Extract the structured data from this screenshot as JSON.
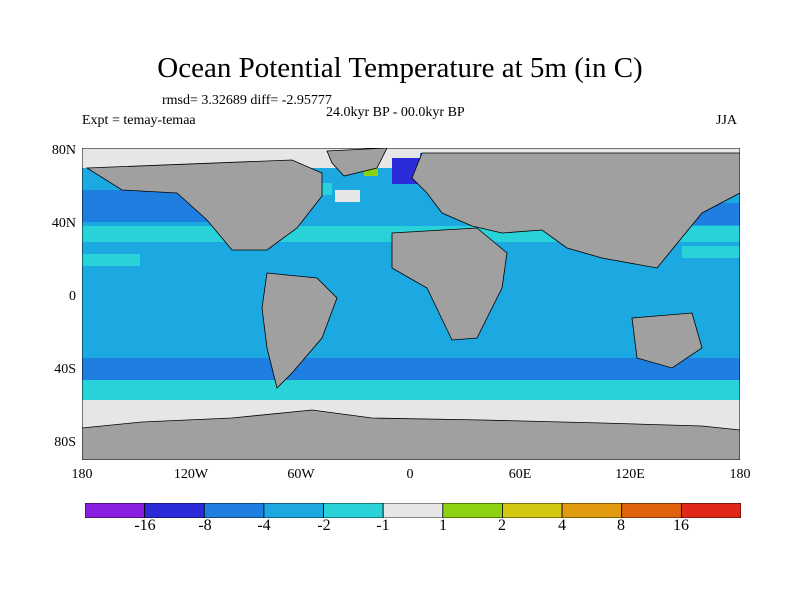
{
  "title": "Ocean Potential Temperature at 5m (in C)",
  "stats": "rmsd= 3.32689 diff= -2.95777",
  "period": "24.0kyr BP - 00.0kyr BP",
  "experiment": "Expt = temay-temaa",
  "season": "JJA",
  "map": {
    "projection": "cylindrical-equidistant",
    "lon_range": [
      -180,
      180
    ],
    "lat_range": [
      -90,
      90
    ],
    "land_color": "#a0a0a0",
    "y_ticks": [
      {
        "lat": 80,
        "label": "80N"
      },
      {
        "lat": 40,
        "label": "40N"
      },
      {
        "lat": 0,
        "label": "0"
      },
      {
        "lat": -40,
        "label": "40S"
      },
      {
        "lat": -80,
        "label": "80S"
      }
    ],
    "x_ticks": [
      {
        "lon": -180,
        "label": "180"
      },
      {
        "lon": -120,
        "label": "120W"
      },
      {
        "lon": -60,
        "label": "60W"
      },
      {
        "lon": 0,
        "label": "0"
      },
      {
        "lon": 60,
        "label": "60E"
      },
      {
        "lon": 120,
        "label": "120E"
      },
      {
        "lon": 180,
        "label": "180"
      }
    ]
  },
  "colorbar": {
    "colors": [
      "#8a1ee0",
      "#2b2bd9",
      "#1f7fe0",
      "#1ca8e0",
      "#28d2d8",
      "#e6e6e6",
      "#8cd213",
      "#d2c80f",
      "#e09a10",
      "#e0620f",
      "#e0281a"
    ],
    "labels": [
      "-16",
      "-8",
      "-4",
      "-2",
      "-1",
      "1",
      "2",
      "4",
      "8",
      "16"
    ]
  }
}
